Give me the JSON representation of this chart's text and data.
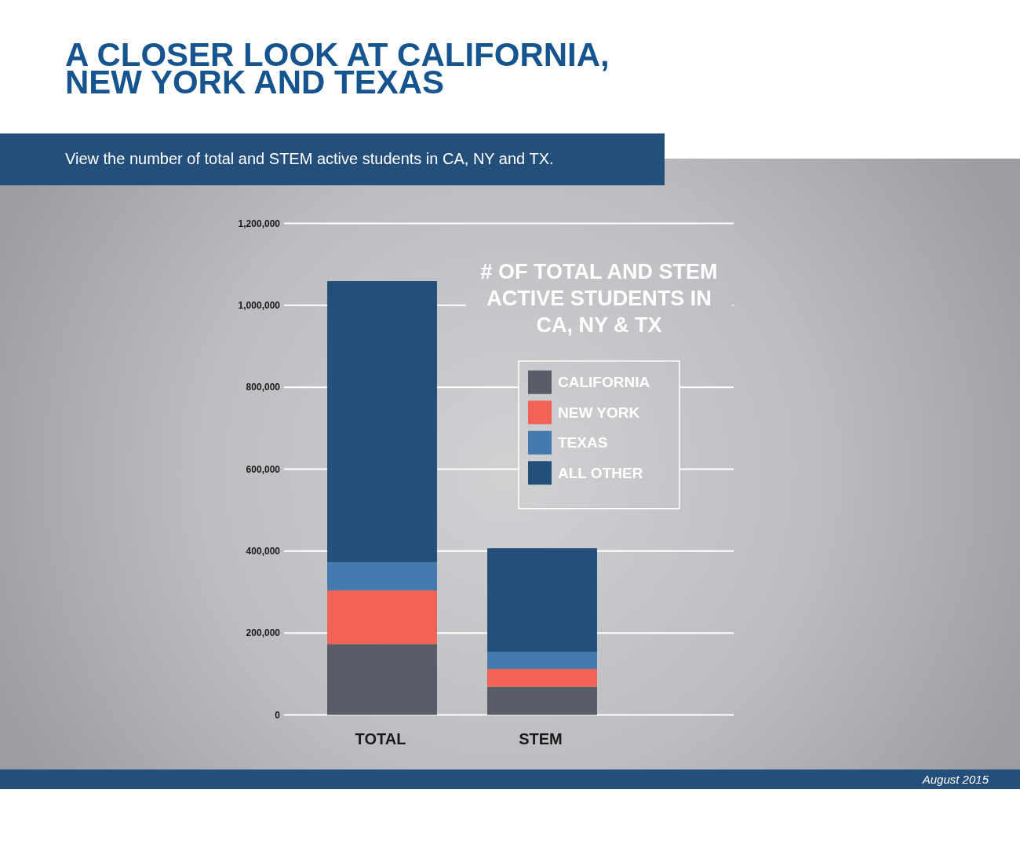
{
  "chart_data": {
    "type": "bar",
    "title": "A CLOSER LOOK AT CALIFORNIA, NEW YORK AND TEXAS",
    "subtitle": "View the number of total and STEM active students in CA, NY and TX.",
    "annotations": [
      "# OF TOTAL AND STEM ACTIVE STUDENTS IN CA, NY & TX",
      "August 2015"
    ],
    "categories": [
      "TOTAL",
      "STEM"
    ],
    "series": [
      {
        "name": "CALIFORNIA",
        "color": "#575c66",
        "values": [
          173000,
          69000
        ]
      },
      {
        "name": "NEW YORK",
        "color": "#f26355",
        "values": [
          131000,
          43000
        ]
      },
      {
        "name": "TEXAS",
        "color": "#447aad",
        "values": [
          69000,
          42000
        ]
      },
      {
        "name": "ALL OTHER",
        "color": "#234f7a",
        "values": [
          686000,
          253000
        ]
      }
    ],
    "stacked": true,
    "ylim": [
      0,
      1200000
    ],
    "yticks": [
      0,
      {
        "value": 200000,
        "label": "200,000"
      },
      {
        "value": 400000,
        "label": "400,000"
      },
      {
        "value": 600000,
        "label": "600,000"
      },
      {
        "value": 800000,
        "label": "800,000"
      },
      {
        "value": 1000000,
        "label": "1,000,000"
      },
      {
        "value": 1200000,
        "label": "1,200,000"
      }
    ],
    "grid": "y",
    "legend": "right"
  }
}
